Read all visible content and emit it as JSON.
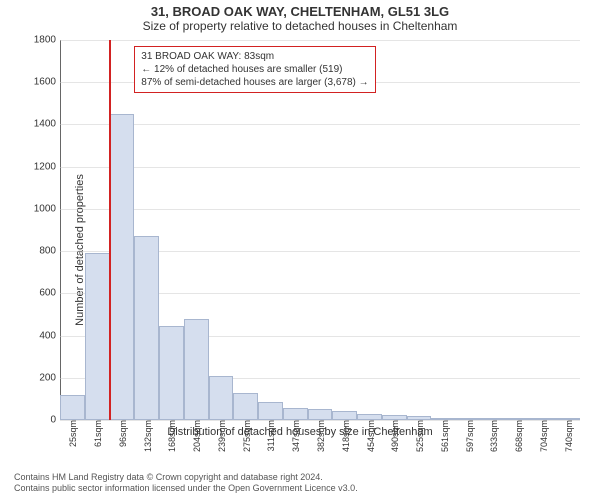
{
  "header": {
    "title": "31, BROAD OAK WAY, CHELTENHAM, GL51 3LG",
    "subtitle": "Size of property relative to detached houses in Cheltenham"
  },
  "chart": {
    "type": "histogram",
    "ylabel": "Number of detached properties",
    "xlabel": "Distribution of detached houses by size in Cheltenham",
    "ylim": [
      0,
      1800
    ],
    "ytick_step": 200,
    "yticks": [
      0,
      200,
      400,
      600,
      800,
      1000,
      1200,
      1400,
      1600,
      1800
    ],
    "x_categories": [
      "25sqm",
      "61sqm",
      "96sqm",
      "132sqm",
      "168sqm",
      "204sqm",
      "239sqm",
      "275sqm",
      "311sqm",
      "347sqm",
      "382sqm",
      "418sqm",
      "454sqm",
      "490sqm",
      "525sqm",
      "561sqm",
      "597sqm",
      "633sqm",
      "668sqm",
      "704sqm",
      "740sqm"
    ],
    "values": [
      120,
      790,
      1450,
      870,
      445,
      480,
      210,
      130,
      85,
      55,
      50,
      45,
      30,
      25,
      20,
      10,
      10,
      5,
      7,
      5,
      5
    ],
    "bar_color": "#d5deee",
    "bar_border": "#a8b6cf",
    "background": "#ffffff",
    "grid_color": "#cccccc",
    "marker": {
      "position_category_index": 2,
      "fraction_into_bin": 0.0,
      "color": "#d22222"
    },
    "info_box": {
      "line1": "31 BROAD OAK WAY: 83sqm",
      "line2": "← 12% of detached houses are smaller (519)",
      "line3": "87% of semi-detached houses are larger (3,678) →",
      "border_color": "#d22222"
    }
  },
  "footer": {
    "line1": "Contains HM Land Registry data © Crown copyright and database right 2024.",
    "line2": "Contains public sector information licensed under the Open Government Licence v3.0."
  }
}
